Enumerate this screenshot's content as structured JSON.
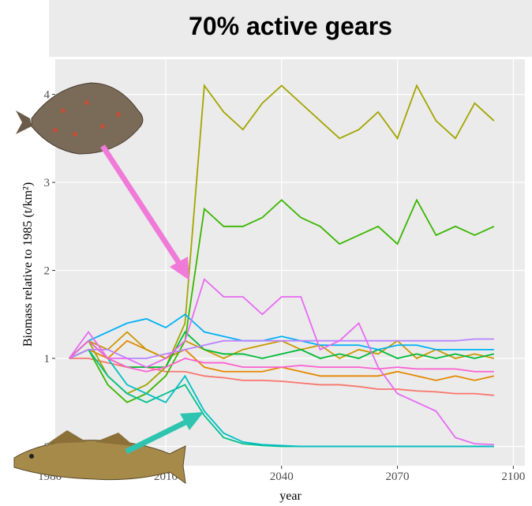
{
  "chart_data": {
    "type": "line",
    "title": "70% active gears",
    "x_label": "year",
    "y_label": "Biomass relative to 1985 (t/km²)",
    "x": [
      1985,
      1990,
      1995,
      2000,
      2005,
      2010,
      2015,
      2020,
      2025,
      2030,
      2035,
      2040,
      2045,
      2050,
      2055,
      2060,
      2065,
      2070,
      2075,
      2080,
      2085,
      2090,
      2095
    ],
    "series": [
      {
        "color": "#F8766D",
        "values": [
          1,
          1.0,
          0.95,
          0.9,
          0.9,
          0.85,
          0.85,
          0.8,
          0.78,
          0.75,
          0.75,
          0.74,
          0.72,
          0.7,
          0.7,
          0.68,
          0.65,
          0.65,
          0.63,
          0.62,
          0.6,
          0.6,
          0.58
        ]
      },
      {
        "color": "#E58700",
        "values": [
          1,
          1.1,
          1.0,
          1.2,
          1.1,
          1.0,
          1.1,
          0.9,
          0.85,
          0.85,
          0.85,
          0.9,
          0.85,
          0.8,
          0.8,
          0.8,
          0.8,
          0.85,
          0.8,
          0.75,
          0.8,
          0.75,
          0.8
        ]
      },
      {
        "color": "#C99800",
        "values": [
          1,
          1.2,
          1.1,
          1.3,
          1.1,
          1.0,
          1.2,
          1.1,
          1.0,
          1.1,
          1.15,
          1.2,
          1.1,
          1.15,
          1.0,
          1.1,
          1.05,
          1.2,
          1.0,
          1.1,
          1.0,
          1.05,
          1.0
        ]
      },
      {
        "color": "#A3A500",
        "values": [
          1,
          1.2,
          0.8,
          0.6,
          0.7,
          0.9,
          1.4,
          4.1,
          3.8,
          3.6,
          3.9,
          4.1,
          3.9,
          3.7,
          3.5,
          3.6,
          3.8,
          3.5,
          4.1,
          3.7,
          3.5,
          3.9,
          3.7
        ]
      },
      {
        "color": "#39B600",
        "values": [
          1,
          1.1,
          0.7,
          0.5,
          0.6,
          0.8,
          1.2,
          2.7,
          2.5,
          2.5,
          2.6,
          2.8,
          2.6,
          2.5,
          2.3,
          2.4,
          2.5,
          2.3,
          2.8,
          2.4,
          2.5,
          2.4,
          2.5
        ]
      },
      {
        "color": "#00BA38",
        "values": [
          1,
          1.2,
          1.0,
          0.9,
          0.9,
          0.9,
          1.3,
          1.1,
          1.05,
          1.05,
          1.0,
          1.05,
          1.1,
          1.0,
          1.05,
          1.0,
          1.1,
          1.0,
          1.05,
          1.0,
          1.05,
          1.0,
          1.05
        ]
      },
      {
        "color": "#00C08B",
        "values": [
          1,
          1.1,
          0.8,
          0.6,
          0.5,
          0.6,
          0.7,
          0.35,
          0.1,
          0.03,
          0.01,
          0,
          0,
          0,
          0,
          0,
          0,
          0,
          0,
          0,
          0,
          0,
          0
        ]
      },
      {
        "color": "#00BFC4",
        "values": [
          1,
          1.2,
          1.0,
          0.7,
          0.6,
          0.5,
          0.8,
          0.4,
          0.15,
          0.05,
          0.02,
          0.01,
          0,
          0,
          0,
          0,
          0,
          0,
          0,
          0,
          0,
          0,
          0
        ]
      },
      {
        "color": "#00B0F6",
        "values": [
          1,
          1.2,
          1.3,
          1.4,
          1.45,
          1.35,
          1.5,
          1.3,
          1.25,
          1.2,
          1.2,
          1.25,
          1.2,
          1.15,
          1.15,
          1.15,
          1.1,
          1.15,
          1.15,
          1.1,
          1.1,
          1.1,
          1.1
        ]
      },
      {
        "color": "#B983FF",
        "values": [
          1,
          1.1,
          1.1,
          1.0,
          1.0,
          1.05,
          1.1,
          1.15,
          1.2,
          1.2,
          1.2,
          1.2,
          1.2,
          1.2,
          1.2,
          1.2,
          1.2,
          1.2,
          1.2,
          1.2,
          1.2,
          1.22,
          1.22
        ]
      },
      {
        "color": "#E76BF3",
        "values": [
          1,
          1.3,
          1.0,
          1.0,
          0.9,
          1.0,
          1.2,
          1.9,
          1.7,
          1.7,
          1.5,
          1.7,
          1.7,
          1.1,
          1.2,
          1.4,
          0.9,
          0.6,
          0.5,
          0.4,
          0.1,
          0.03,
          0.02
        ]
      },
      {
        "color": "#FD61D1",
        "values": [
          1,
          1.2,
          1.0,
          0.9,
          0.85,
          0.9,
          1.0,
          0.95,
          0.95,
          0.9,
          0.9,
          0.9,
          0.92,
          0.9,
          0.9,
          0.9,
          0.88,
          0.9,
          0.88,
          0.88,
          0.88,
          0.85,
          0.85
        ]
      }
    ],
    "xlim": [
      1981.4,
      2103
    ],
    "ylim": [
      -0.22,
      4.4
    ],
    "xticks": [
      1980,
      2010,
      2040,
      2070,
      2100
    ],
    "yticks": [
      0,
      1,
      2,
      3,
      4
    ],
    "grid": true
  }
}
